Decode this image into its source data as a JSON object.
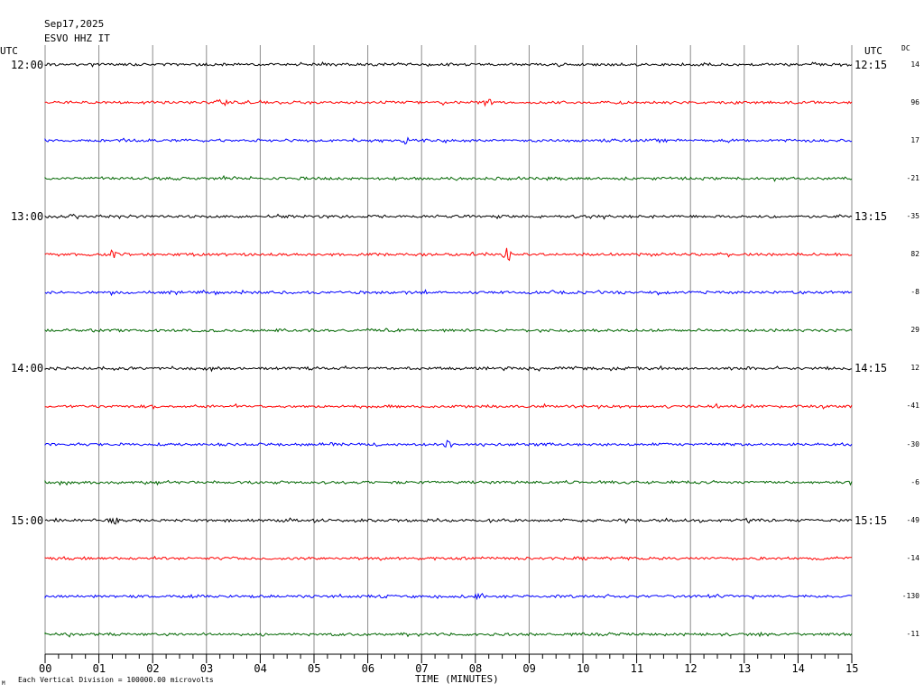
{
  "header": {
    "date": "Sep17,2025",
    "station": "ESVO HHZ IT",
    "utc_left": "UTC",
    "utc_right": "UTC",
    "dc_label": "DC"
  },
  "footer": {
    "note": "Each Vertical Division = 100000.00 microvolts",
    "corner_mark": "M"
  },
  "chart_data": {
    "type": "line",
    "title": "",
    "xlabel": "TIME (MINUTES)",
    "ylabel": "",
    "xlim": [
      0,
      15
    ],
    "x_ticks": [
      "00",
      "01",
      "02",
      "03",
      "04",
      "05",
      "06",
      "07",
      "08",
      "09",
      "10",
      "11",
      "12",
      "13",
      "14",
      "15"
    ],
    "grid": true,
    "trace_colors": [
      "#000000",
      "#ff0000",
      "#0000ff",
      "#006600"
    ],
    "left_time_labels": [
      {
        "row": 0,
        "text": "12:00"
      },
      {
        "row": 4,
        "text": "13:00"
      },
      {
        "row": 8,
        "text": "14:00"
      },
      {
        "row": 12,
        "text": "15:00"
      }
    ],
    "right_time_labels": [
      {
        "row": 0,
        "text": "12:15"
      },
      {
        "row": 4,
        "text": "13:15"
      },
      {
        "row": 8,
        "text": "14:15"
      },
      {
        "row": 12,
        "text": "15:15"
      }
    ],
    "dc_offsets": [
      "14",
      "96",
      "17",
      "-21",
      "-35",
      "82",
      "-8",
      "29",
      "12",
      "-41",
      "-30",
      "-6",
      "-49",
      "-14",
      "-130",
      "-11"
    ],
    "events": [
      {
        "row": 1,
        "minute": 3.3,
        "amplitude": "medium"
      },
      {
        "row": 1,
        "minute": 8.25,
        "amplitude": "medium"
      },
      {
        "row": 2,
        "minute": 6.7,
        "amplitude": "small"
      },
      {
        "row": 5,
        "minute": 1.25,
        "amplitude": "small"
      },
      {
        "row": 5,
        "minute": 8.6,
        "amplitude": "large"
      },
      {
        "row": 10,
        "minute": 7.5,
        "amplitude": "small"
      },
      {
        "row": 12,
        "minute": 1.3,
        "amplitude": "small"
      },
      {
        "row": 14,
        "minute": 8.1,
        "amplitude": "small"
      }
    ]
  }
}
